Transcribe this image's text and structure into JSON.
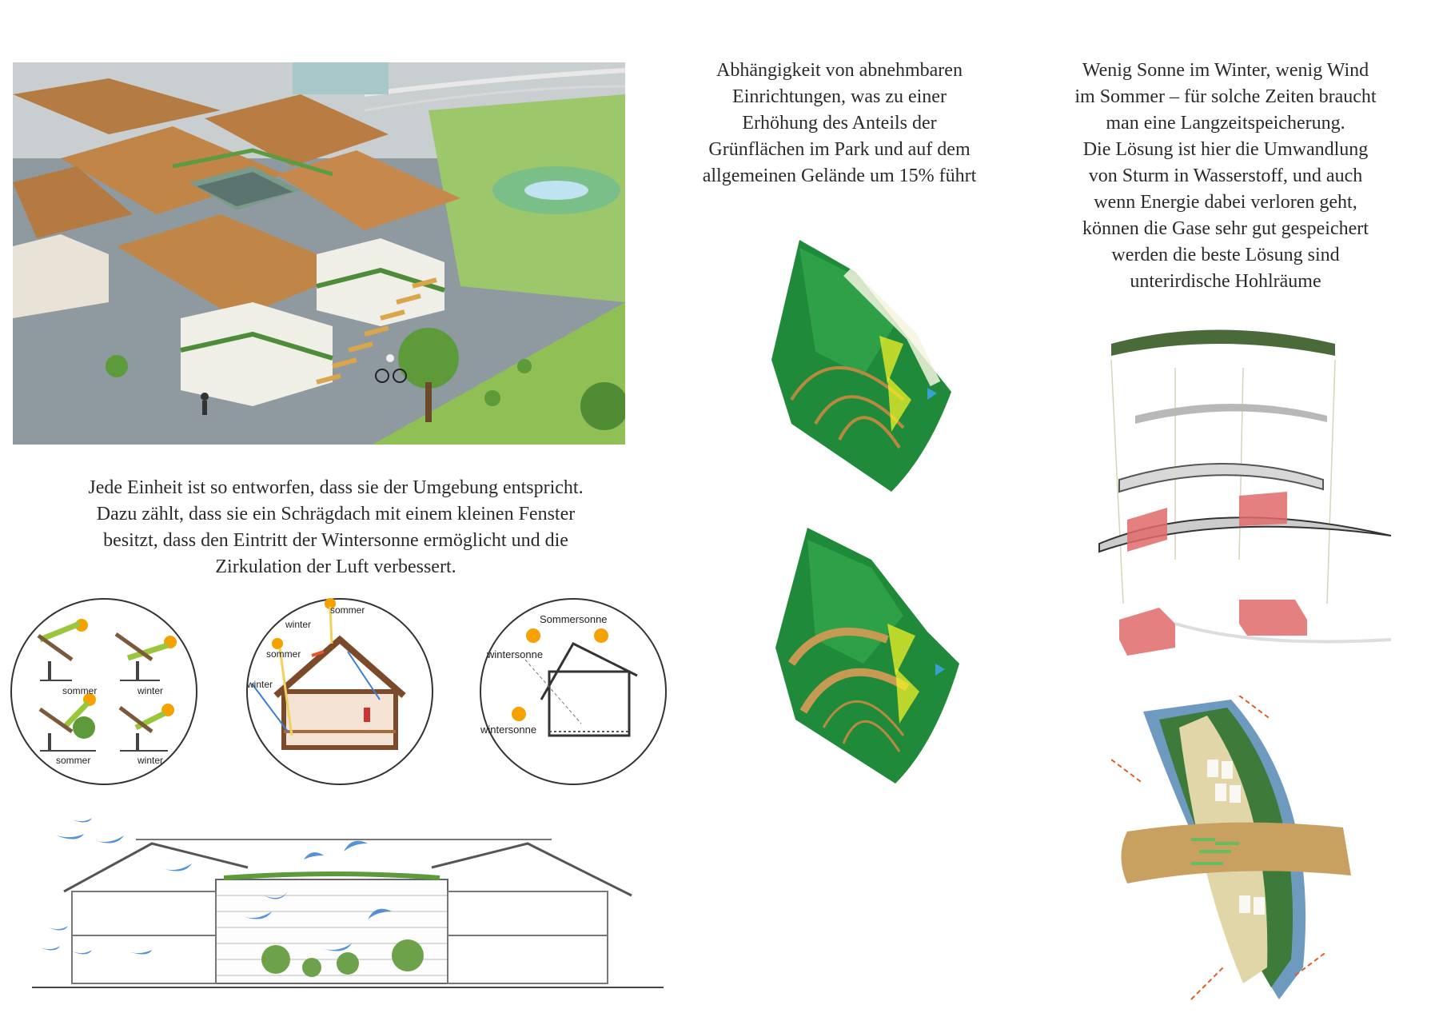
{
  "texts": {
    "top_center": [
      "Abhängigkeit von abnehmbaren",
      "Einrichtungen, was zu einer",
      "Erhöhung des Anteils der",
      "Grünflächen im Park und auf dem",
      "allgemeinen Gelände um 15% führt"
    ],
    "top_right": [
      "Wenig Sonne im Winter, wenig Wind",
      "im Sommer – für solche Zeiten braucht",
      "man eine Langzeitspeicherung.",
      "Die Lösung ist hier die Umwandlung",
      "von Sturm in Wasserstoff, und auch",
      "wenn Energie dabei verloren geht,",
      "können die Gase sehr gut gespeichert",
      "werden die beste Lösung sind",
      "unterirdische Hohlräume"
    ],
    "middle_left": [
      "Jede Einheit ist so entworfen, dass sie der Umgebung entspricht.",
      "Dazu zählt, dass sie ein Schrägdach mit einem kleinen Fenster",
      "besitzt, dass den Eintritt der Wintersonne ermöglicht und die",
      "Zirkulation der Luft verbessert."
    ]
  },
  "circle1": {
    "tl": "sommer",
    "tr": "winter",
    "bl": "sommer",
    "br": "winter"
  },
  "circle2": {
    "sommer_top": "sommer",
    "winter_top": "winter",
    "sommer_left": "sommer",
    "winter_left": "winter"
  },
  "circle3": {
    "sommersonne": "Sommersonne",
    "wintersonne_a": "wintersonne",
    "wintersonne_b": "wintersonne"
  },
  "colors": {
    "wood": "#b87a3d",
    "green": "#2e8b3a",
    "sun": "#f5a100",
    "wind": "#3a7fd0",
    "storage": "#e06a6a"
  }
}
